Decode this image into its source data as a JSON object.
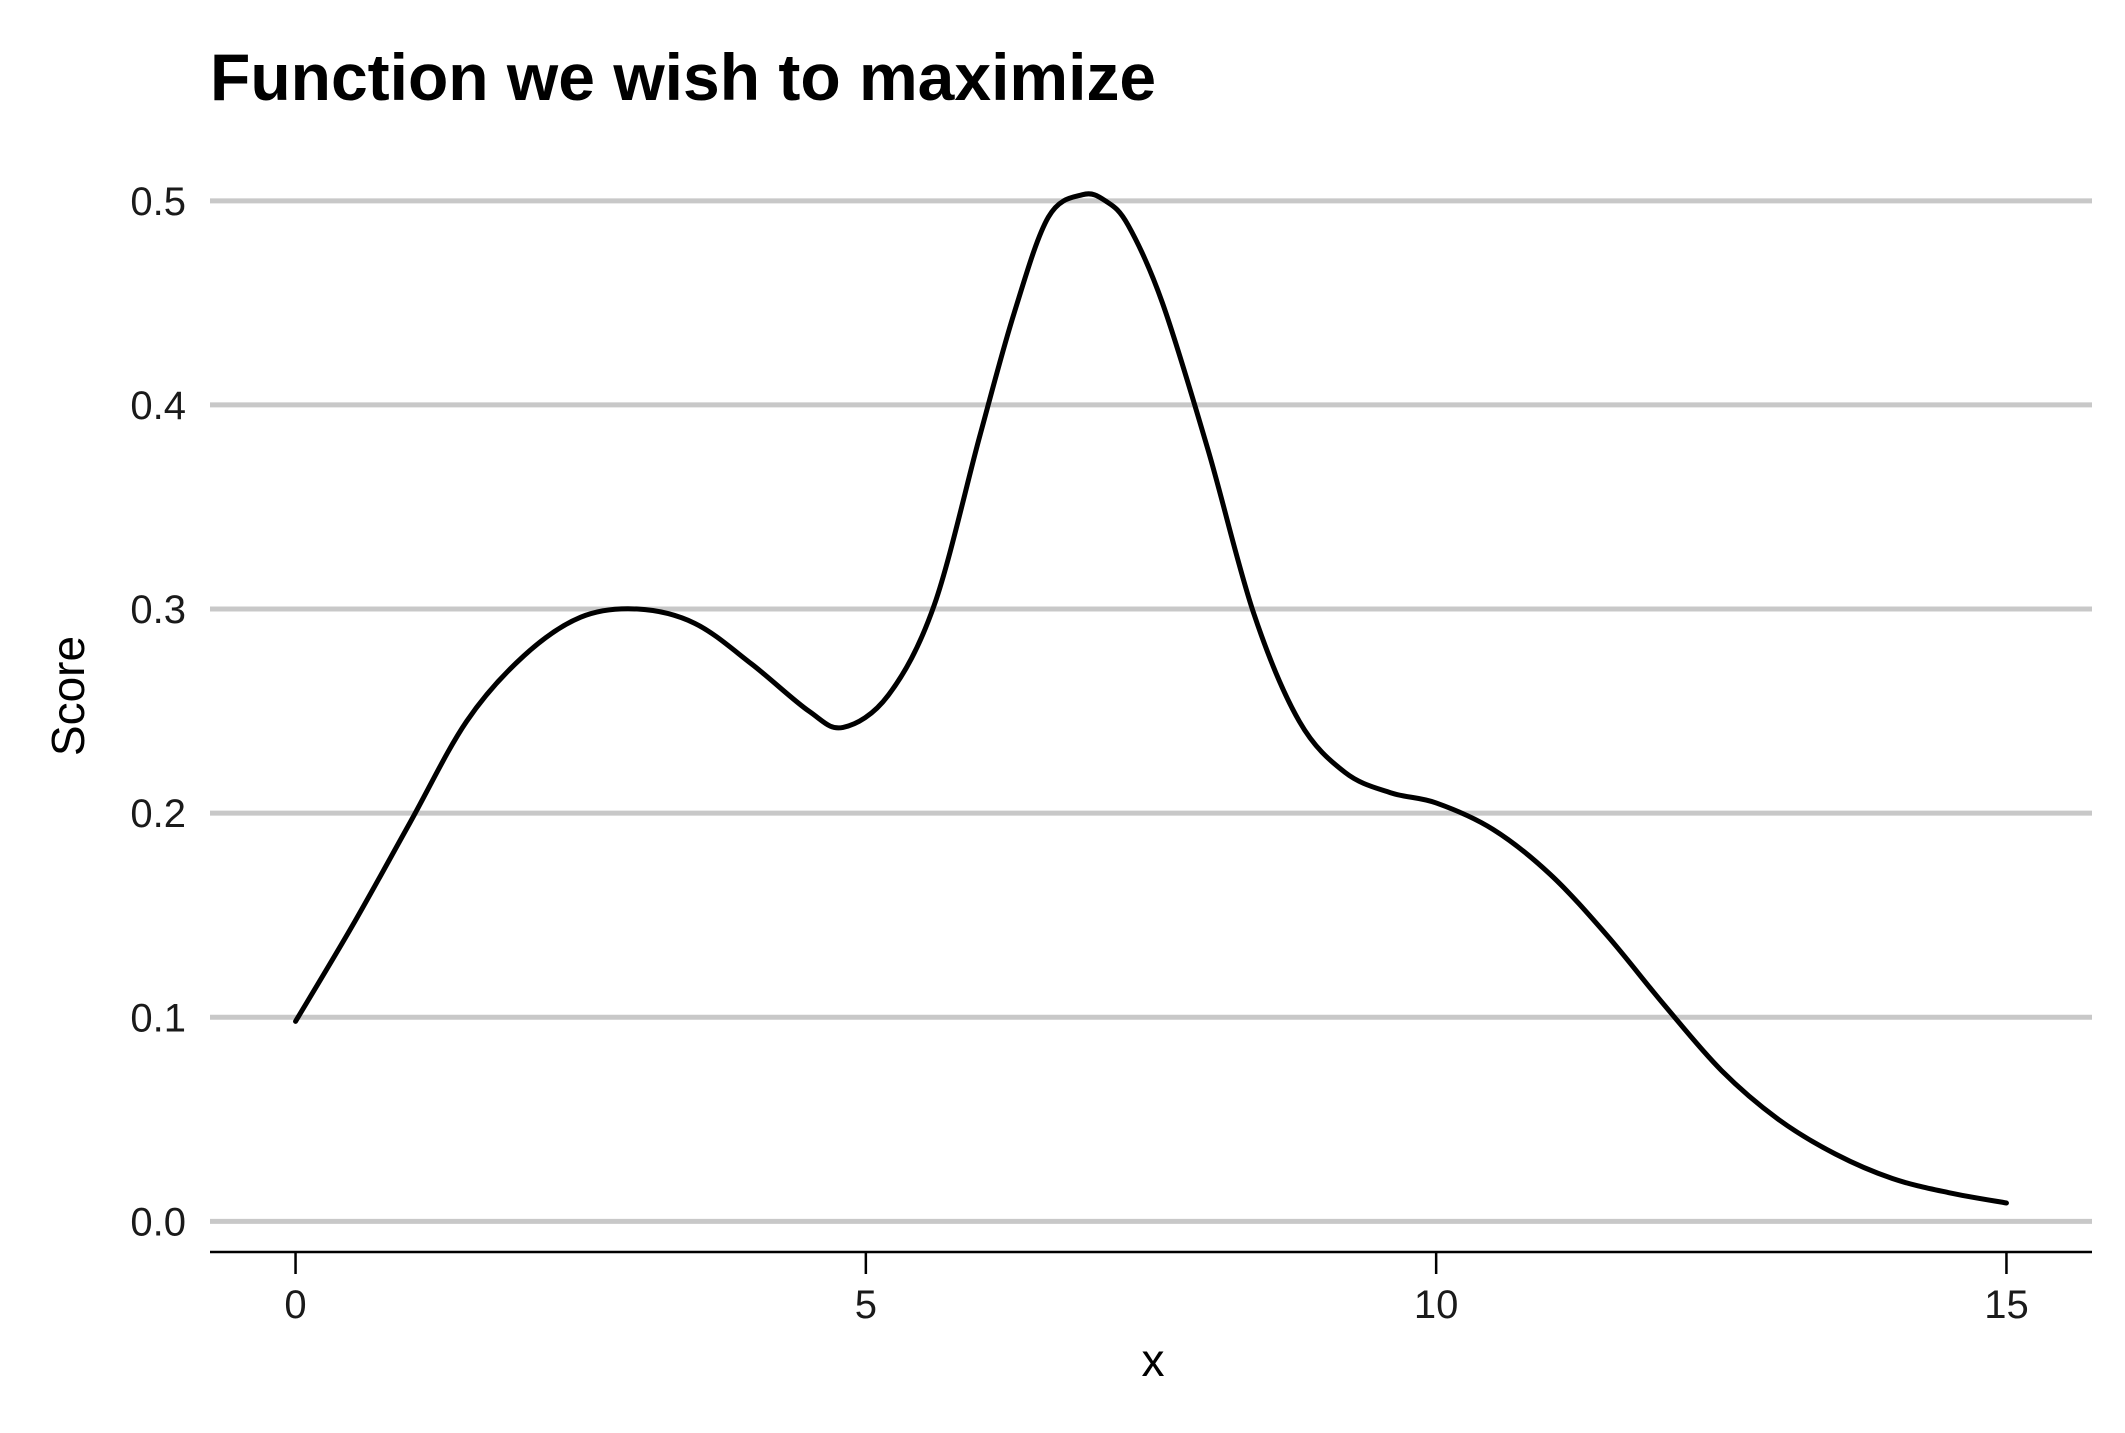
{
  "chart_data": {
    "type": "line",
    "title": "Function we wish to maximize",
    "xlabel": "x",
    "ylabel": "Score",
    "xlim": [
      -0.75,
      15.75
    ],
    "ylim": [
      -0.015,
      0.52
    ],
    "xticks": [
      0,
      5,
      10,
      15
    ],
    "xtick_labels": [
      "0",
      "5",
      "10",
      "15"
    ],
    "yticks": [
      0.0,
      0.1,
      0.2,
      0.3,
      0.4,
      0.5
    ],
    "ytick_labels": [
      "0.0",
      "0.1",
      "0.2",
      "0.3",
      "0.4",
      "0.5"
    ],
    "grid": "horizontal major",
    "legend": "none",
    "colors": {
      "line": "#000000",
      "grid": "#c8c8c8",
      "background": "#ffffff"
    },
    "series": [
      {
        "x": [
          0,
          0.5,
          1.0,
          1.5,
          2.0,
          2.5,
          3.0,
          3.5,
          4.0,
          4.5,
          4.8,
          5.2,
          5.6,
          6.0,
          6.3,
          6.6,
          6.9,
          7.1,
          7.3,
          7.6,
          8.0,
          8.4,
          8.8,
          9.2,
          9.6,
          10.0,
          10.5,
          11.0,
          11.5,
          12.0,
          12.5,
          13.0,
          13.5,
          14.0,
          14.5,
          15.0
        ],
        "y": [
          0.098,
          0.145,
          0.195,
          0.245,
          0.277,
          0.296,
          0.3,
          0.293,
          0.273,
          0.25,
          0.242,
          0.258,
          0.302,
          0.385,
          0.445,
          0.492,
          0.503,
          0.5,
          0.488,
          0.45,
          0.378,
          0.298,
          0.245,
          0.22,
          0.21,
          0.205,
          0.192,
          0.17,
          0.14,
          0.106,
          0.074,
          0.05,
          0.033,
          0.021,
          0.014,
          0.009
        ]
      }
    ]
  }
}
